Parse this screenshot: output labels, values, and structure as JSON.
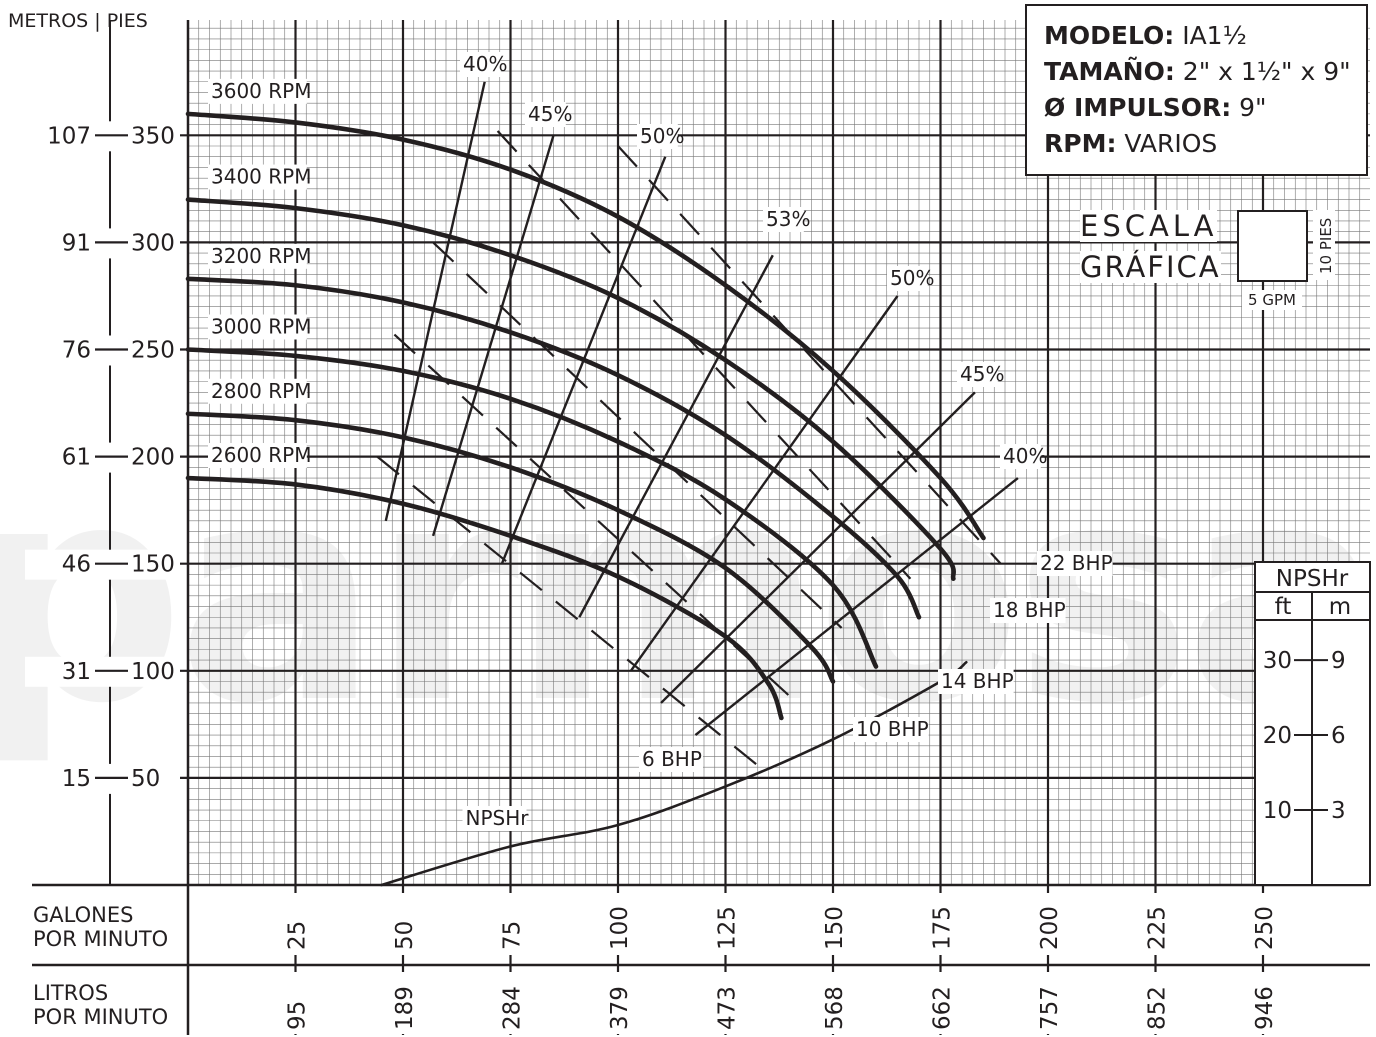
{
  "axes": {
    "left_title": "METROS | PIES",
    "x_title_1_line1": "GALONES",
    "x_title_1_line2": "POR MINUTO",
    "x_title_2_line1": "LITROS",
    "x_title_2_line2": "POR MINUTO"
  },
  "info": {
    "modelo_label": "MODELO:",
    "modelo_value": " IA1½",
    "tamano_label": "TAMAÑO:",
    "tamano_value": " 2\" x 1½\" x 9\"",
    "impulsor_label": "Ø IMPULSOR:",
    "impulsor_value": " 9\"",
    "rpm_label": "RPM:",
    "rpm_value": " VARIOS"
  },
  "scale": {
    "line1": "ESCALA",
    "line2": "GRÁFICA",
    "vertical": "10 PIES",
    "horizontal": "5 GPM"
  },
  "watermark": "parmosabomps",
  "chart_data": {
    "type": "line",
    "xlim": [
      0,
      250
    ],
    "ylim": [
      0,
      350
    ],
    "x_ticks_gpm": [
      25,
      50,
      75,
      100,
      125,
      150,
      175,
      200,
      225,
      250
    ],
    "x_ticks_lpm": [
      "95",
      "189",
      "284",
      "379",
      "473",
      "568",
      "662",
      "757",
      "852",
      "946"
    ],
    "y_ticks_ft": [
      50,
      100,
      150,
      200,
      250,
      300,
      350
    ],
    "y_ticks_m": [
      "15",
      "31",
      "46",
      "61",
      "76",
      "91",
      "107"
    ],
    "series": [
      {
        "name": "3600 RPM",
        "points": [
          [
            0,
            360
          ],
          [
            25,
            356
          ],
          [
            50,
            348
          ],
          [
            75,
            334
          ],
          [
            100,
            312
          ],
          [
            125,
            280
          ],
          [
            150,
            240
          ],
          [
            175,
            190
          ],
          [
            185,
            162
          ]
        ]
      },
      {
        "name": "3400 RPM",
        "points": [
          [
            0,
            320
          ],
          [
            25,
            316
          ],
          [
            50,
            308
          ],
          [
            75,
            294
          ],
          [
            100,
            274
          ],
          [
            125,
            245
          ],
          [
            150,
            207
          ],
          [
            175,
            157
          ],
          [
            178,
            143
          ]
        ]
      },
      {
        "name": "3200 RPM",
        "points": [
          [
            0,
            283
          ],
          [
            25,
            280
          ],
          [
            50,
            272
          ],
          [
            75,
            258
          ],
          [
            100,
            238
          ],
          [
            125,
            210
          ],
          [
            150,
            172
          ],
          [
            165,
            144
          ],
          [
            170,
            125
          ]
        ]
      },
      {
        "name": "3000 RPM",
        "points": [
          [
            0,
            250
          ],
          [
            25,
            247
          ],
          [
            50,
            240
          ],
          [
            75,
            227
          ],
          [
            100,
            207
          ],
          [
            125,
            180
          ],
          [
            150,
            140
          ],
          [
            160,
            102
          ]
        ]
      },
      {
        "name": "2800 RPM",
        "points": [
          [
            0,
            220
          ],
          [
            25,
            217
          ],
          [
            50,
            209
          ],
          [
            75,
            195
          ],
          [
            100,
            175
          ],
          [
            125,
            148
          ],
          [
            145,
            111
          ],
          [
            150,
            95
          ]
        ]
      },
      {
        "name": "2600 RPM",
        "points": [
          [
            0,
            190
          ],
          [
            25,
            187
          ],
          [
            50,
            178
          ],
          [
            75,
            163
          ],
          [
            100,
            144
          ],
          [
            125,
            116
          ],
          [
            135,
            94
          ],
          [
            138,
            78
          ]
        ]
      },
      {
        "name": "NPSHr",
        "points": [
          [
            45,
            0
          ],
          [
            75,
            18
          ],
          [
            100,
            28
          ],
          [
            125,
            46
          ],
          [
            150,
            68
          ],
          [
            175,
            95
          ],
          [
            181,
            104
          ]
        ]
      }
    ],
    "efficiency_lines": [
      {
        "label": "40%",
        "points": [
          [
            46,
            170
          ],
          [
            69,
            375
          ]
        ]
      },
      {
        "label": "45%",
        "points": [
          [
            57,
            163
          ],
          [
            85,
            350
          ]
        ]
      },
      {
        "label": "50%",
        "points": [
          [
            73,
            150
          ],
          [
            111,
            340
          ]
        ]
      },
      {
        "label": "53%",
        "points": [
          [
            91,
            125
          ],
          [
            136,
            294
          ]
        ]
      },
      {
        "label": "50%",
        "points": [
          [
            103,
            100
          ],
          [
            165,
            275
          ]
        ]
      },
      {
        "label": "45%",
        "points": [
          [
            110,
            85
          ],
          [
            183,
            230
          ]
        ]
      },
      {
        "label": "40%",
        "points": [
          [
            118,
            70
          ],
          [
            193,
            190
          ]
        ]
      }
    ],
    "power_lines": [
      {
        "label": "6 BHP",
        "points": [
          [
            44,
            200
          ],
          [
            133,
            55
          ]
        ]
      },
      {
        "label": "10 BHP",
        "points": [
          [
            48,
            257
          ],
          [
            140,
            88
          ]
        ]
      },
      {
        "label": "14 BHP",
        "points": [
          [
            57,
            300
          ],
          [
            152,
            120
          ]
        ]
      },
      {
        "label": "18 BHP",
        "points": [
          [
            72,
            352
          ],
          [
            168,
            143
          ]
        ]
      },
      {
        "label": "22 BHP",
        "points": [
          [
            100,
            345
          ],
          [
            189,
            150
          ]
        ]
      }
    ],
    "npshr_axis": {
      "title": "NPSHr",
      "unit_ft": "ft",
      "unit_m": "m",
      "ft_ticks": [
        10,
        20,
        30
      ],
      "m_ticks": [
        "3",
        "6",
        "9"
      ]
    }
  }
}
